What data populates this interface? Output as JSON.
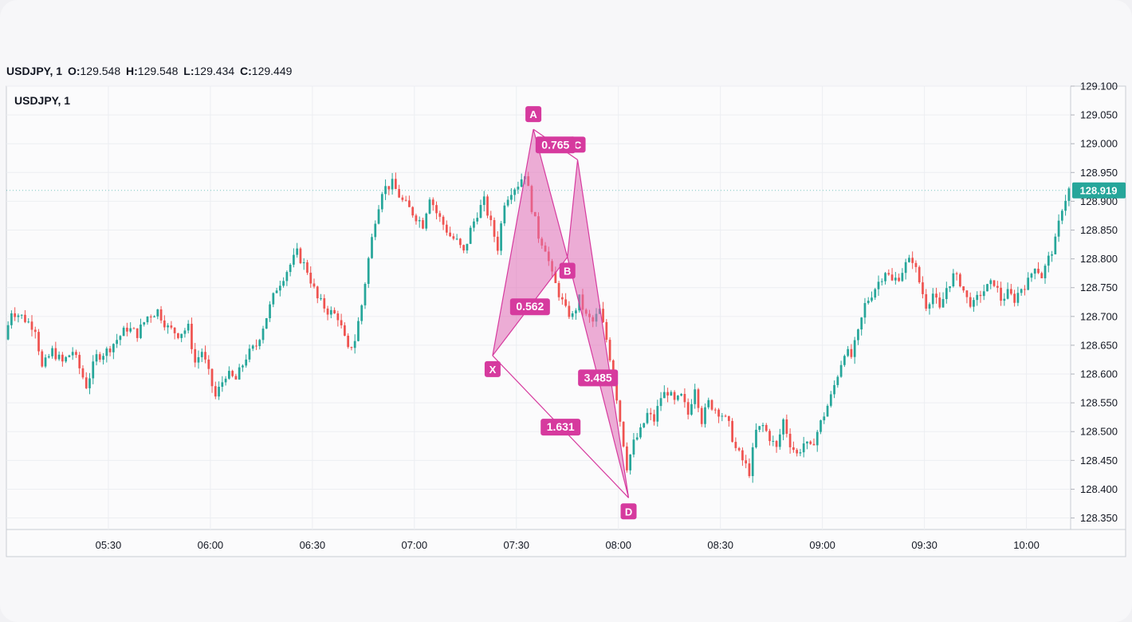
{
  "header": {
    "symbol": "USDJPY, 1",
    "o_label": "O:",
    "o_value": "129.548",
    "h_label": "H:",
    "h_value": "129.548",
    "l_label": "L:",
    "l_value": "129.434",
    "c_label": "C:",
    "c_value": "129.449"
  },
  "pane_title": "USDJPY, 1",
  "price_badge": "128.919",
  "colors": {
    "up": "#26a69a",
    "down": "#ef5350",
    "pattern": "#d63a9e",
    "pattern_fill": "#e06bb5",
    "last_price": "#26a69a"
  },
  "chart_data": {
    "type": "candlestick",
    "title": "USDJPY, 1",
    "x_ticks": [
      "05:30",
      "06:00",
      "06:30",
      "07:00",
      "07:30",
      "08:00",
      "08:30",
      "09:00",
      "09:30",
      "10:00"
    ],
    "x_tick_minutes": [
      330,
      360,
      390,
      420,
      450,
      480,
      510,
      540,
      570,
      600
    ],
    "y_ticks": [
      "129.100",
      "129.050",
      "129.000",
      "128.950",
      "128.900",
      "128.850",
      "128.800",
      "128.750",
      "128.700",
      "128.650",
      "128.600",
      "128.550",
      "128.500",
      "128.450",
      "128.400",
      "128.350"
    ],
    "ylim": [
      128.33,
      129.1
    ],
    "xlim_minutes": [
      300,
      613
    ],
    "last_price": 128.919,
    "close_path": [
      [
        300,
        128.66
      ],
      [
        302,
        128.71
      ],
      [
        305,
        128.7
      ],
      [
        309,
        128.68
      ],
      [
        311,
        128.61
      ],
      [
        314,
        128.64
      ],
      [
        317,
        128.62
      ],
      [
        320,
        128.64
      ],
      [
        322,
        128.61
      ],
      [
        324,
        128.58
      ],
      [
        327,
        128.63
      ],
      [
        330,
        128.64
      ],
      [
        333,
        128.66
      ],
      [
        336,
        128.68
      ],
      [
        339,
        128.67
      ],
      [
        342,
        128.7
      ],
      [
        345,
        128.71
      ],
      [
        348,
        128.68
      ],
      [
        351,
        128.67
      ],
      [
        354,
        128.68
      ],
      [
        356,
        128.62
      ],
      [
        358,
        128.64
      ],
      [
        360,
        128.6
      ],
      [
        362,
        128.56
      ],
      [
        365,
        128.6
      ],
      [
        368,
        128.59
      ],
      [
        371,
        128.63
      ],
      [
        374,
        128.65
      ],
      [
        377,
        128.7
      ],
      [
        380,
        128.75
      ],
      [
        383,
        128.78
      ],
      [
        386,
        128.81
      ],
      [
        389,
        128.78
      ],
      [
        392,
        128.73
      ],
      [
        395,
        128.71
      ],
      [
        398,
        128.7
      ],
      [
        401,
        128.64
      ],
      [
        403,
        128.66
      ],
      [
        405,
        128.72
      ],
      [
        407,
        128.8
      ],
      [
        409,
        128.87
      ],
      [
        411,
        128.92
      ],
      [
        414,
        128.93
      ],
      [
        417,
        128.9
      ],
      [
        420,
        128.88
      ],
      [
        423,
        128.86
      ],
      [
        425,
        128.91
      ],
      [
        427,
        128.88
      ],
      [
        429,
        128.86
      ],
      [
        431,
        128.84
      ],
      [
        433,
        128.83
      ],
      [
        435,
        128.81
      ],
      [
        437,
        128.85
      ],
      [
        439,
        128.88
      ],
      [
        441,
        128.9
      ],
      [
        443,
        128.86
      ],
      [
        445,
        128.82
      ],
      [
        447,
        128.9
      ],
      [
        449,
        128.92
      ],
      [
        451,
        128.93
      ],
      [
        453,
        128.95
      ],
      [
        455,
        128.89
      ],
      [
        457,
        128.84
      ],
      [
        459,
        128.82
      ],
      [
        461,
        128.77
      ],
      [
        463,
        128.74
      ],
      [
        465,
        128.71
      ],
      [
        467,
        128.7
      ],
      [
        469,
        128.73
      ],
      [
        471,
        128.7
      ],
      [
        473,
        128.69
      ],
      [
        475,
        128.71
      ],
      [
        477,
        128.66
      ],
      [
        479,
        128.6
      ],
      [
        481,
        128.52
      ],
      [
        483,
        128.44
      ],
      [
        485,
        128.48
      ],
      [
        487,
        128.5
      ],
      [
        489,
        128.53
      ],
      [
        491,
        128.52
      ],
      [
        493,
        128.56
      ],
      [
        495,
        128.57
      ],
      [
        497,
        128.55
      ],
      [
        499,
        128.56
      ],
      [
        501,
        128.53
      ],
      [
        503,
        128.58
      ],
      [
        505,
        128.52
      ],
      [
        507,
        128.55
      ],
      [
        509,
        128.54
      ],
      [
        511,
        128.53
      ],
      [
        513,
        128.51
      ],
      [
        515,
        128.47
      ],
      [
        517,
        128.45
      ],
      [
        519,
        128.43
      ],
      [
        521,
        128.5
      ],
      [
        523,
        128.51
      ],
      [
        525,
        128.49
      ],
      [
        527,
        128.47
      ],
      [
        529,
        128.52
      ],
      [
        531,
        128.48
      ],
      [
        533,
        128.46
      ],
      [
        535,
        128.48
      ],
      [
        537,
        128.47
      ],
      [
        539,
        128.5
      ],
      [
        541,
        128.53
      ],
      [
        543,
        128.56
      ],
      [
        545,
        128.6
      ],
      [
        547,
        128.64
      ],
      [
        549,
        128.63
      ],
      [
        551,
        128.67
      ],
      [
        553,
        128.72
      ],
      [
        555,
        128.74
      ],
      [
        557,
        128.76
      ],
      [
        559,
        128.78
      ],
      [
        561,
        128.76
      ],
      [
        563,
        128.77
      ],
      [
        565,
        128.79
      ],
      [
        567,
        128.8
      ],
      [
        569,
        128.76
      ],
      [
        571,
        128.72
      ],
      [
        573,
        128.74
      ],
      [
        575,
        128.71
      ],
      [
        577,
        128.75
      ],
      [
        579,
        128.77
      ],
      [
        581,
        128.76
      ],
      [
        583,
        128.73
      ],
      [
        585,
        128.72
      ],
      [
        587,
        128.74
      ],
      [
        589,
        128.75
      ],
      [
        591,
        128.76
      ],
      [
        593,
        128.73
      ],
      [
        595,
        128.74
      ],
      [
        597,
        128.73
      ],
      [
        599,
        128.75
      ],
      [
        601,
        128.76
      ],
      [
        603,
        128.79
      ],
      [
        605,
        128.77
      ],
      [
        607,
        128.8
      ],
      [
        609,
        128.83
      ],
      [
        611,
        128.89
      ],
      [
        613,
        128.92
      ]
    ],
    "pattern": {
      "points": [
        {
          "label": "X",
          "minute": 443,
          "price": 128.632
        },
        {
          "label": "A",
          "minute": 455,
          "price": 129.025
        },
        {
          "label": "B",
          "minute": 465,
          "price": 128.803
        },
        {
          "label": "C",
          "minute": 468,
          "price": 128.972
        },
        {
          "label": "D",
          "minute": 483,
          "price": 128.385
        }
      ],
      "ratios": [
        {
          "label": "0.765",
          "from": "A",
          "to": "C"
        },
        {
          "label": "0.562",
          "from": "X",
          "to": "B"
        },
        {
          "label": "3.485",
          "from": "B",
          "to": "D"
        },
        {
          "label": "1.631",
          "from": "X",
          "to": "D"
        }
      ]
    }
  }
}
